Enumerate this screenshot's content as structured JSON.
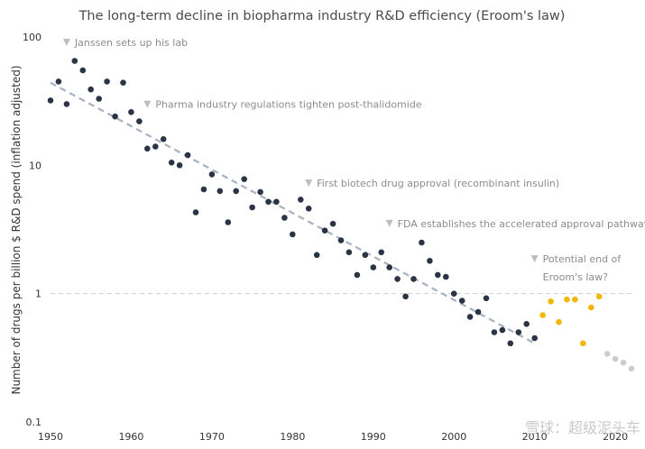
{
  "chart_data": {
    "type": "scatter",
    "title": "The long-term decline in biopharma industry R&D efficiency (Eroom's law)",
    "xlabel": "",
    "ylabel": "Number of drugs per billion $ R&D spend (inflation adjusted)",
    "y_scale": "log",
    "xlim": [
      1950,
      2022
    ],
    "ylim": [
      0.1,
      100
    ],
    "x_ticks": [
      "1950",
      "1960",
      "1970",
      "1980",
      "1990",
      "2000",
      "2010",
      "2020"
    ],
    "y_ticks": [
      "100",
      "10",
      "1",
      "0.1"
    ],
    "reference_line_y": 1,
    "series": [
      {
        "color": "#2b3445",
        "points": [
          [
            1950,
            32
          ],
          [
            1951,
            45
          ],
          [
            1952,
            30
          ],
          [
            1953,
            65
          ],
          [
            1954,
            55
          ],
          [
            1955,
            39
          ],
          [
            1956,
            33
          ],
          [
            1957,
            45
          ],
          [
            1958,
            24
          ],
          [
            1959,
            44
          ],
          [
            1960,
            26
          ],
          [
            1961,
            22
          ],
          [
            1962,
            13.5
          ],
          [
            1963,
            14
          ],
          [
            1964,
            16
          ],
          [
            1965,
            10.5
          ],
          [
            1966,
            10
          ],
          [
            1967,
            12
          ],
          [
            1968,
            4.3
          ],
          [
            1969,
            6.5
          ],
          [
            1970,
            8.5
          ],
          [
            1971,
            6.3
          ],
          [
            1972,
            3.6
          ],
          [
            1973,
            6.3
          ],
          [
            1974,
            7.8
          ],
          [
            1975,
            4.7
          ],
          [
            1976,
            6.2
          ],
          [
            1977,
            5.2
          ],
          [
            1978,
            5.2
          ],
          [
            1979,
            3.9
          ],
          [
            1980,
            2.9
          ],
          [
            1981,
            5.4
          ],
          [
            1982,
            4.6
          ],
          [
            1983,
            2.0
          ],
          [
            1984,
            3.1
          ],
          [
            1985,
            3.5
          ],
          [
            1986,
            2.6
          ],
          [
            1987,
            2.1
          ],
          [
            1988,
            1.4
          ],
          [
            1989,
            2.0
          ],
          [
            1990,
            1.6
          ],
          [
            1991,
            2.1
          ],
          [
            1992,
            1.6
          ],
          [
            1993,
            1.3
          ],
          [
            1994,
            0.95
          ],
          [
            1995,
            1.3
          ],
          [
            1996,
            2.5
          ],
          [
            1997,
            1.8
          ],
          [
            1998,
            1.4
          ],
          [
            1999,
            1.35
          ],
          [
            2000,
            1.0
          ],
          [
            2001,
            0.88
          ],
          [
            2002,
            0.66
          ],
          [
            2003,
            0.72
          ],
          [
            2004,
            0.92
          ],
          [
            2005,
            0.5
          ],
          [
            2006,
            0.52
          ],
          [
            2007,
            0.41
          ],
          [
            2008,
            0.5
          ],
          [
            2009,
            0.58
          ],
          [
            2010,
            0.45
          ]
        ]
      },
      {
        "color": "#f2b705",
        "points": [
          [
            2011,
            0.68
          ],
          [
            2012,
            0.87
          ],
          [
            2013,
            0.6
          ],
          [
            2014,
            0.9
          ],
          [
            2015,
            0.9
          ],
          [
            2016,
            0.41
          ],
          [
            2017,
            0.78
          ],
          [
            2018,
            0.95
          ]
        ]
      },
      {
        "color": "#cccccc",
        "points": [
          [
            2019,
            0.34
          ],
          [
            2020,
            0.31
          ],
          [
            2021,
            0.29
          ],
          [
            2022,
            0.26
          ]
        ]
      }
    ],
    "trendline": {
      "color": "#a7b1c2",
      "style": "dashed",
      "from": [
        1950,
        44
      ],
      "to": [
        2010,
        0.41
      ]
    },
    "annotations": [
      {
        "text": "Janssen sets up his lab",
        "x": 1952,
        "y": 85
      },
      {
        "text": "Pharma industry regulations tighten post-thalidomide",
        "x": 1962,
        "y": 28
      },
      {
        "text": "First biotech drug approval (recombinant insulin)",
        "x": 1982,
        "y": 6.8
      },
      {
        "text": "FDA establishes the accelerated approval pathway",
        "x": 1992,
        "y": 3.3
      },
      {
        "text": "Potential end of",
        "x": 2010,
        "y": 1.75
      },
      {
        "text": "Eroom's law?",
        "x": 2010,
        "y": 1.27
      }
    ]
  },
  "watermark": {
    "text": "雪球：超级泥头车"
  }
}
